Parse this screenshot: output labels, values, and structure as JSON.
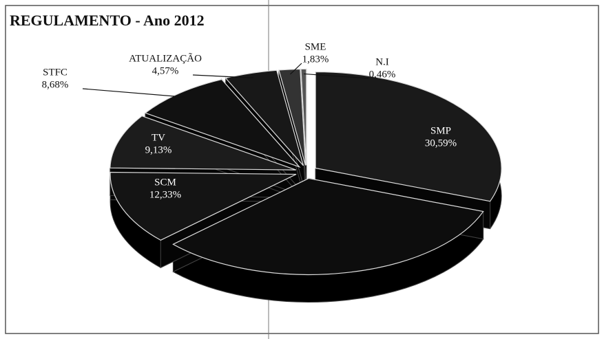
{
  "chart_data": {
    "type": "pie",
    "title": "REGULAMENTO - Ano 2012",
    "categories": [
      "SMP",
      null,
      "SCM",
      "TV",
      "STFC",
      "ATUALIZAÇÃO",
      "SME",
      "N.I"
    ],
    "values": [
      30.59,
      32.41,
      12.33,
      9.13,
      8.68,
      4.57,
      1.83,
      0.46
    ],
    "value_labels": [
      "30,59%",
      null,
      "12,33%",
      "9,13%",
      "8,68%",
      "4,57%",
      "1,83%",
      "0,46%"
    ],
    "colors": [
      "#1a1a1a",
      "#0d0d0d",
      "#141414",
      "#1c1c1c",
      "#111111",
      "#181818",
      "#333333",
      "#555555"
    ]
  }
}
